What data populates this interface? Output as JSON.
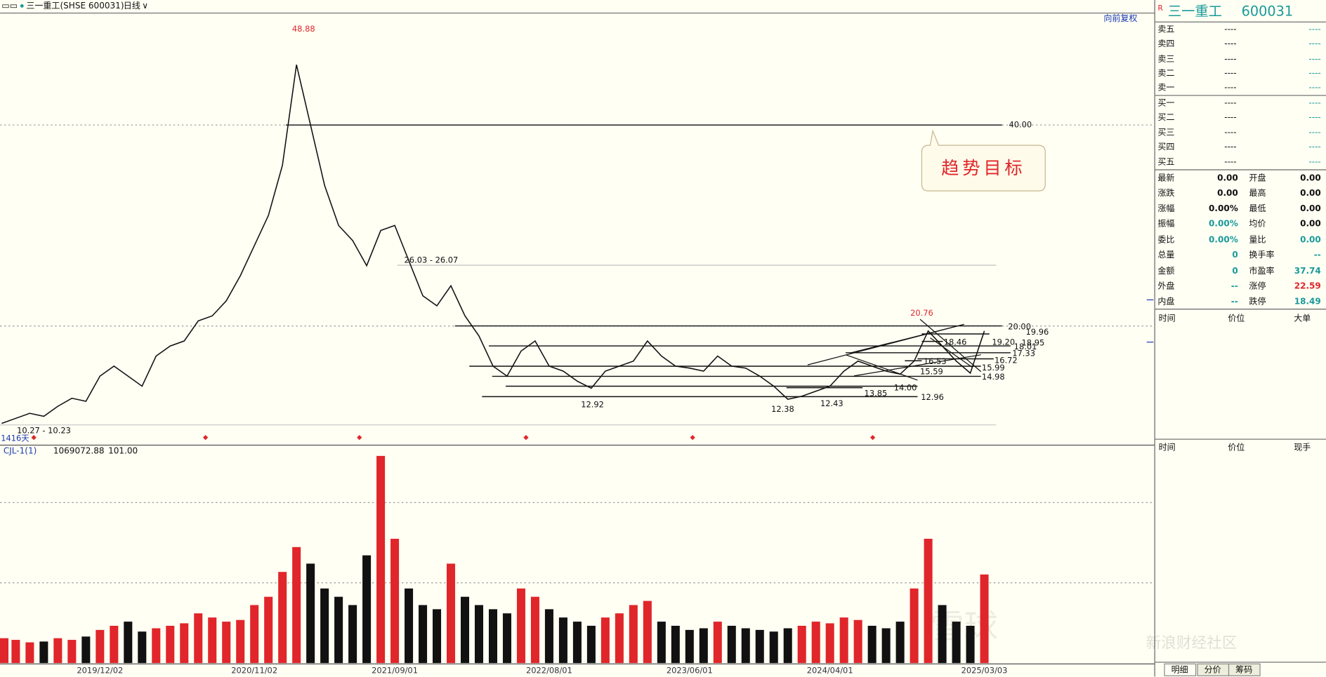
{
  "toolbar": {
    "symbol": "三一重工(SHSE 600031)",
    "period": "日线",
    "adjust": "向前复权"
  },
  "chart_data": [
    {
      "type": "line",
      "color": "#111111",
      "values": [
        10.3,
        10.8,
        11.3,
        11.0,
        12.0,
        12.8,
        12.5,
        15.0,
        16.0,
        15.0,
        14.0,
        17.0,
        18.0,
        18.5,
        20.5,
        21.0,
        22.5,
        25.0,
        28.0,
        31.0,
        36.0,
        46.0,
        40.0,
        34.0,
        30.0,
        28.5,
        26.0,
        29.5,
        30.0,
        26.5,
        23.0,
        22.0,
        24.0,
        21.0,
        19.0,
        16.0,
        15.0,
        17.5,
        18.5,
        16.0,
        15.5,
        14.5,
        13.8,
        15.5,
        16.0,
        16.5,
        18.5,
        17.0,
        16.0,
        15.8,
        15.5,
        17.0,
        16.0,
        15.8,
        15.0,
        14.0,
        12.7,
        13.0,
        13.5,
        14.0,
        15.5,
        16.5,
        16.0,
        15.5,
        15.2,
        16.5,
        19.5,
        18.0,
        16.5,
        15.3,
        19.5
      ],
      "ylim": [
        8.3,
        51.1
      ],
      "levels": [
        {
          "value": 40,
          "label": "40.00"
        },
        {
          "value": 20,
          "label": "20.00"
        },
        {
          "value": 19.96,
          "label": "19.96"
        },
        {
          "value": 19.2,
          "label": "19.20"
        },
        {
          "value": 18.95,
          "label": "18.95"
        },
        {
          "value": 18.46,
          "label": "18.46"
        },
        {
          "value": 18.01,
          "label": "18.01"
        },
        {
          "value": 17.33,
          "label": "17.33"
        },
        {
          "value": 16.72,
          "label": "16.72"
        },
        {
          "value": 16.53,
          "label": "16.53"
        },
        {
          "value": 15.99,
          "label": "15.99"
        },
        {
          "value": 15.59,
          "label": "15.59"
        },
        {
          "value": 14.98,
          "label": "14.98"
        },
        {
          "value": 14,
          "label": "14.00"
        },
        {
          "value": 13.85,
          "label": "13.85"
        },
        {
          "value": 12.96,
          "label": "12.96"
        },
        {
          "value": 12.92,
          "label": "12.92"
        },
        {
          "value": 12.43,
          "label": "12.43"
        },
        {
          "value": 12.38,
          "label": "12.38"
        }
      ],
      "annotations": [
        {
          "value": 48.88,
          "label": "48.88",
          "color": "#e0262b"
        },
        {
          "value": 20.76,
          "label": "20.76",
          "color": "#e0262b"
        }
      ],
      "range_labels": [
        "26.03 - 26.07",
        "10.27 - 10.23"
      ],
      "span_label": "1416天",
      "callout": "趋势目标"
    },
    {
      "type": "bar",
      "title": "CJL-1(1)",
      "readouts": [
        "1069072.88",
        "101.00"
      ],
      "color": "#e0262b",
      "down_color": "#111111",
      "categories": [
        null,
        null,
        null,
        null,
        null,
        null,
        null,
        "2019/12/02",
        null,
        null,
        null,
        null,
        null,
        null,
        null,
        null,
        null,
        null,
        "2020/11/02",
        null,
        null,
        null,
        null,
        null,
        null,
        null,
        null,
        null,
        "2021/09/01",
        null,
        null,
        null,
        null,
        null,
        null,
        null,
        null,
        null,
        null,
        "2022/08/01",
        null,
        null,
        null,
        null,
        null,
        null,
        null,
        null,
        null,
        "2023/06/01",
        null,
        null,
        null,
        null,
        null,
        null,
        null,
        null,
        null,
        "2024/04/01",
        null,
        null,
        null,
        null,
        null,
        null,
        null,
        null,
        null,
        null,
        "2025/03/03"
      ],
      "values": [
        300000,
        280000,
        250000,
        260000,
        300000,
        280000,
        320000,
        400000,
        450000,
        500000,
        380000,
        420000,
        450000,
        480000,
        600000,
        550000,
        500000,
        520000,
        700000,
        800000,
        1100000,
        1400000,
        1200000,
        900000,
        800000,
        700000,
        1300000,
        2500000,
        1500000,
        900000,
        700000,
        650000,
        1200000,
        800000,
        700000,
        650000,
        600000,
        900000,
        800000,
        650000,
        550000,
        500000,
        450000,
        550000,
        600000,
        700000,
        750000,
        500000,
        450000,
        400000,
        420000,
        500000,
        450000,
        420000,
        400000,
        380000,
        420000,
        450000,
        500000,
        480000,
        550000,
        520000,
        450000,
        420000,
        500000,
        900000,
        1500000,
        700000,
        500000,
        450000,
        1069072.88
      ],
      "ylim": [
        0,
        2630000
      ]
    }
  ],
  "quote": {
    "flag": "R",
    "title": "三一重工",
    "code": "600031",
    "book": [
      [
        "卖五",
        "----",
        "----"
      ],
      [
        "卖四",
        "----",
        "----"
      ],
      [
        "卖三",
        "----",
        "----"
      ],
      [
        "卖二",
        "----",
        "----"
      ],
      [
        "卖一",
        "----",
        "----"
      ],
      [
        "买一",
        "----",
        "----"
      ],
      [
        "买二",
        "----",
        "----"
      ],
      [
        "买三",
        "----",
        "----"
      ],
      [
        "买四",
        "----",
        "----"
      ],
      [
        "买五",
        "----",
        "----"
      ]
    ],
    "stats": [
      [
        "最新",
        "0.00",
        "开盘",
        "0.00"
      ],
      [
        "涨跌",
        "0.00",
        "最高",
        "0.00"
      ],
      [
        "涨幅",
        "0.00%",
        "最低",
        "0.00"
      ],
      [
        "振幅",
        "0.00%",
        "均价",
        "0.00"
      ],
      [
        "委比",
        "0.00%",
        "量比",
        "0.00"
      ],
      [
        "总量",
        "0",
        "换手率",
        "--"
      ],
      [
        "金额",
        "0",
        "市盈率",
        "37.74"
      ],
      [
        "外盘",
        "--",
        "涨停",
        "22.59"
      ],
      [
        "内盘",
        "--",
        "跌停",
        "18.49"
      ]
    ],
    "big_orders_header": [
      "时间",
      "价位",
      "大单"
    ],
    "trades_header": [
      "时间",
      "价位",
      "现手"
    ],
    "tabs": [
      "明细",
      "分价",
      "筹码"
    ]
  },
  "watermark": [
    "雪球",
    "新浪财经社区"
  ]
}
